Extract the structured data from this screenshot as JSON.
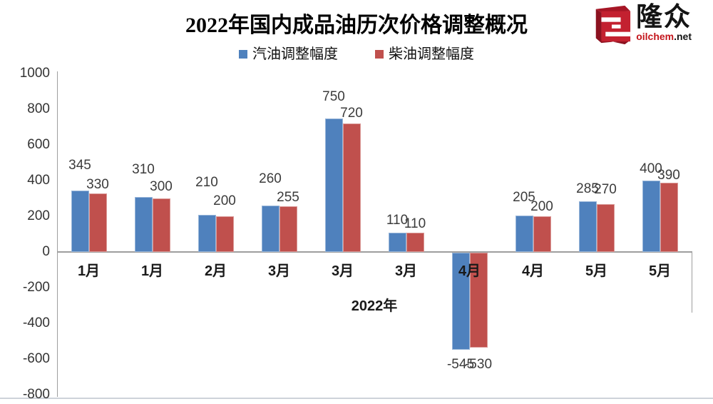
{
  "title": "2022年国内成品油历次价格调整概况",
  "logo": {
    "brand": "隆众",
    "domain_red": "oilchem",
    "domain_black": ".net",
    "cube_front_color": "#c32130",
    "cube_side_color": "#8c1220",
    "cube_top_color": "#a61626"
  },
  "legend": [
    {
      "label": "汽油调整幅度",
      "color": "#4F81BD"
    },
    {
      "label": "柴油调整幅度",
      "color": "#C0504D"
    }
  ],
  "chart_data": {
    "type": "bar",
    "title": "2022年国内成品油历次价格调整概况",
    "categories": [
      "1月",
      "1月",
      "2月",
      "3月",
      "3月",
      "3月",
      "4月",
      "4月",
      "5月",
      "5月"
    ],
    "series": [
      {
        "name": "汽油调整幅度",
        "color": "#4F81BD",
        "values": [
          345,
          310,
          210,
          260,
          750,
          110,
          -545,
          205,
          285,
          400
        ],
        "label_gaps": [
          25,
          28,
          35,
          27,
          20,
          7,
          11,
          15,
          7,
          6
        ]
      },
      {
        "name": "柴油调整幅度",
        "color": "#C0504D",
        "values": [
          330,
          300,
          200,
          255,
          720,
          110,
          -530,
          200,
          270,
          390
        ],
        "label_gaps": [
          2,
          6,
          11,
          2,
          4,
          2,
          14,
          3,
          10,
          0
        ]
      }
    ],
    "xlabel": "2022年",
    "ylabel": "",
    "ylim": [
      -800,
      1000
    ],
    "ytick_step": 200,
    "grid": false,
    "legend_position": "top"
  }
}
